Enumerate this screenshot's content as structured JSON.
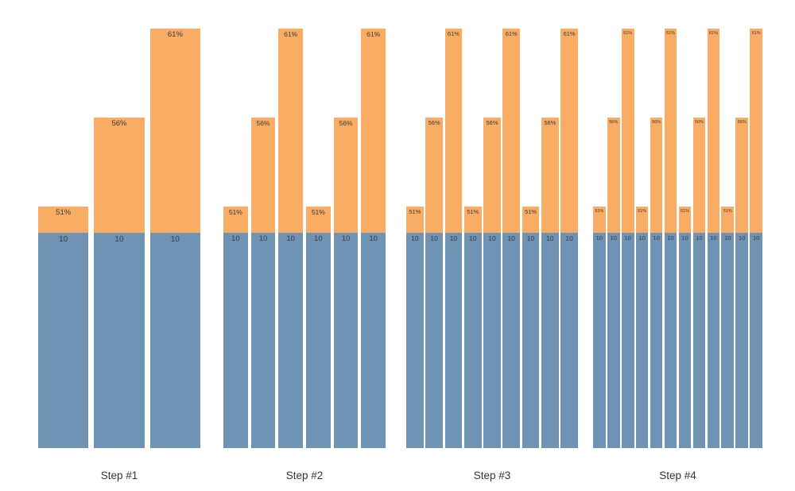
{
  "chart_data": {
    "type": "bar",
    "subtype": "stacked-grouped",
    "title": "",
    "xlabel": "",
    "ylabel": "",
    "legend": "none",
    "grid": false,
    "categories": [
      "Step #1",
      "Step #2",
      "Step #3",
      "Step #4"
    ],
    "percent_pattern": [
      51,
      56,
      61
    ],
    "base_value": 10,
    "colors": {
      "base_segment": "#6E93B5",
      "percent_segment": "#F8AC64",
      "segment_label": "#3a3a3a",
      "category_label": "#333333",
      "background": "#FFFFFF"
    },
    "groups": [
      {
        "label": "Step #1",
        "bars": [
          {
            "base": 10,
            "base_label": "10",
            "percent": 51,
            "percent_label": "51%"
          },
          {
            "base": 10,
            "base_label": "10",
            "percent": 56,
            "percent_label": "56%"
          },
          {
            "base": 10,
            "base_label": "10",
            "percent": 61,
            "percent_label": "61%"
          }
        ]
      },
      {
        "label": "Step #2",
        "bars": [
          {
            "base": 10,
            "base_label": "10",
            "percent": 51,
            "percent_label": "51%"
          },
          {
            "base": 10,
            "base_label": "10",
            "percent": 56,
            "percent_label": "56%"
          },
          {
            "base": 10,
            "base_label": "10",
            "percent": 61,
            "percent_label": "61%"
          },
          {
            "base": 10,
            "base_label": "10",
            "percent": 51,
            "percent_label": "51%"
          },
          {
            "base": 10,
            "base_label": "10",
            "percent": 56,
            "percent_label": "56%"
          },
          {
            "base": 10,
            "base_label": "10",
            "percent": 61,
            "percent_label": "61%"
          }
        ]
      },
      {
        "label": "Step #3",
        "bars": [
          {
            "base": 10,
            "base_label": "10",
            "percent": 51,
            "percent_label": "51%"
          },
          {
            "base": 10,
            "base_label": "10",
            "percent": 56,
            "percent_label": "56%"
          },
          {
            "base": 10,
            "base_label": "10",
            "percent": 61,
            "percent_label": "61%"
          },
          {
            "base": 10,
            "base_label": "10",
            "percent": 51,
            "percent_label": "51%"
          },
          {
            "base": 10,
            "base_label": "10",
            "percent": 56,
            "percent_label": "56%"
          },
          {
            "base": 10,
            "base_label": "10",
            "percent": 61,
            "percent_label": "61%"
          },
          {
            "base": 10,
            "base_label": "10",
            "percent": 51,
            "percent_label": "51%"
          },
          {
            "base": 10,
            "base_label": "10",
            "percent": 56,
            "percent_label": "56%"
          },
          {
            "base": 10,
            "base_label": "10",
            "percent": 61,
            "percent_label": "61%"
          }
        ]
      },
      {
        "label": "Step #4",
        "bars": [
          {
            "base": 10,
            "base_label": "10",
            "percent": 51,
            "percent_label": "51%"
          },
          {
            "base": 10,
            "base_label": "10",
            "percent": 56,
            "percent_label": "56%"
          },
          {
            "base": 10,
            "base_label": "10",
            "percent": 61,
            "percent_label": "61%"
          },
          {
            "base": 10,
            "base_label": "10",
            "percent": 51,
            "percent_label": "51%"
          },
          {
            "base": 10,
            "base_label": "10",
            "percent": 56,
            "percent_label": "56%"
          },
          {
            "base": 10,
            "base_label": "10",
            "percent": 61,
            "percent_label": "61%"
          },
          {
            "base": 10,
            "base_label": "10",
            "percent": 51,
            "percent_label": "51%"
          },
          {
            "base": 10,
            "base_label": "10",
            "percent": 56,
            "percent_label": "56%"
          },
          {
            "base": 10,
            "base_label": "10",
            "percent": 61,
            "percent_label": "61%"
          },
          {
            "base": 10,
            "base_label": "10",
            "percent": 51,
            "percent_label": "51%"
          },
          {
            "base": 10,
            "base_label": "10",
            "percent": 56,
            "percent_label": "56%"
          },
          {
            "base": 10,
            "base_label": "10",
            "percent": 61,
            "percent_label": "61%"
          }
        ]
      }
    ]
  }
}
